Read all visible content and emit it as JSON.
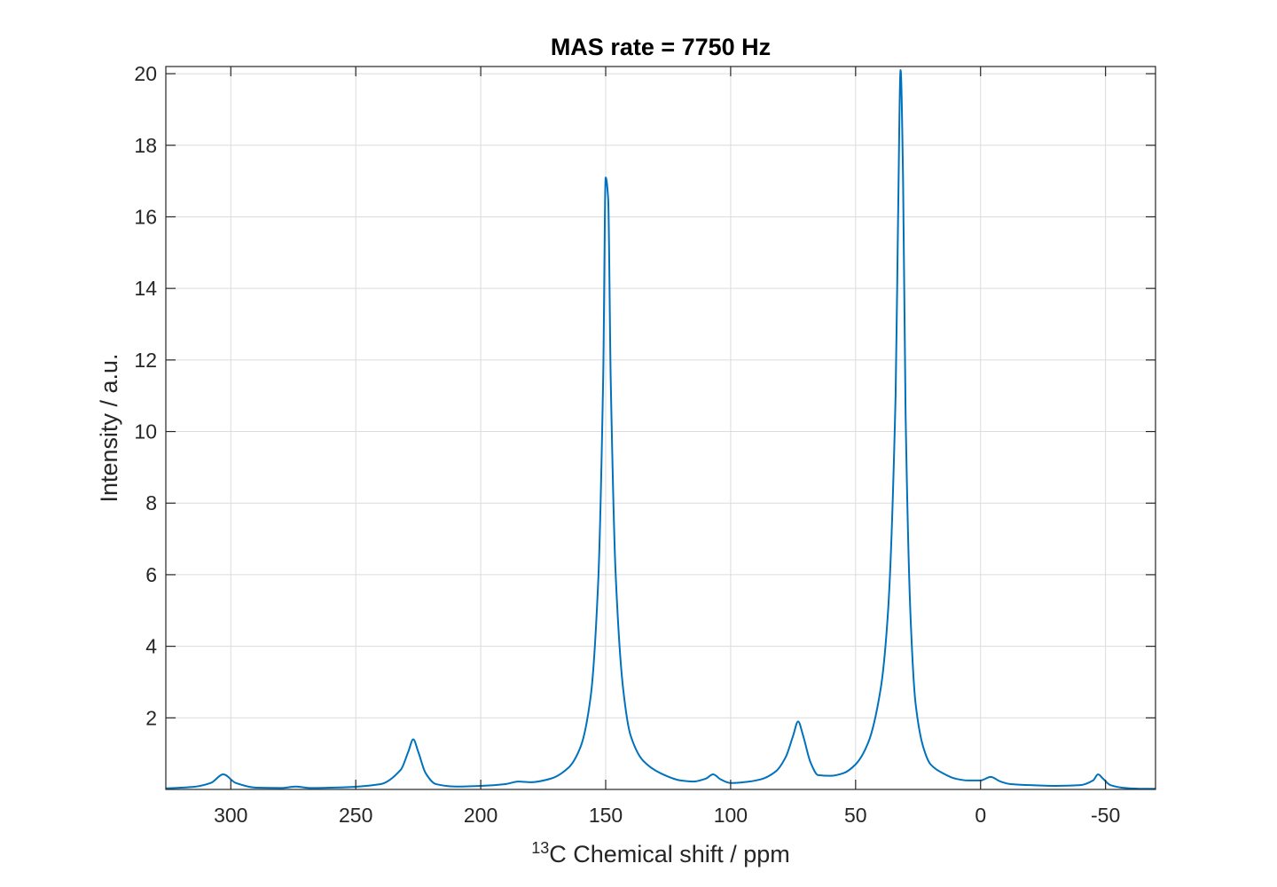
{
  "chart_data": {
    "type": "line",
    "title": "MAS rate = 7750 Hz",
    "xlabel_sup": "13",
    "xlabel_main": "C Chemical shift / ppm",
    "ylabel": "Intensity / a.u.",
    "xlim": [
      326,
      -70
    ],
    "ylim": [
      0,
      20.2
    ],
    "x_reversed": true,
    "grid": true,
    "line_color": "#0072BD",
    "xticks": [
      300,
      250,
      200,
      150,
      100,
      50,
      0,
      -50
    ],
    "xtick_labels": [
      "300",
      "250",
      "200",
      "150",
      "100",
      "50",
      "0",
      "-50"
    ],
    "yticks": [
      2,
      4,
      6,
      8,
      10,
      12,
      14,
      16,
      18,
      20
    ],
    "ytick_labels": [
      "2",
      "4",
      "6",
      "8",
      "10",
      "12",
      "14",
      "16",
      "18",
      "20"
    ],
    "series": [
      {
        "x": [
          326,
          315,
          308,
          303,
          298,
          290,
          280,
          274,
          268,
          255,
          240,
          232,
          229,
          227,
          225,
          222,
          218,
          210,
          200,
          190,
          185,
          180,
          172,
          165,
          160,
          156,
          153,
          151,
          150,
          149,
          148,
          146,
          143,
          140,
          135,
          128,
          120,
          115,
          110,
          107,
          104,
          100,
          95,
          88,
          82,
          78,
          75,
          73,
          71,
          68,
          65,
          60,
          55,
          50,
          45,
          40,
          37,
          34,
          33,
          32,
          31,
          30,
          28,
          26,
          23,
          20,
          15,
          10,
          5,
          0,
          -4,
          -8,
          -12,
          -20,
          -30,
          -40,
          -45,
          -47,
          -49,
          -52,
          -58,
          -65,
          -70
        ],
        "y": [
          0.03,
          0.07,
          0.18,
          0.42,
          0.18,
          0.05,
          0.04,
          0.08,
          0.04,
          0.06,
          0.15,
          0.55,
          1.05,
          1.4,
          1.05,
          0.45,
          0.15,
          0.08,
          0.1,
          0.15,
          0.22,
          0.2,
          0.3,
          0.6,
          1.2,
          2.6,
          5.8,
          11.5,
          17.1,
          16.5,
          11.5,
          6.0,
          2.8,
          1.5,
          0.8,
          0.45,
          0.25,
          0.22,
          0.3,
          0.42,
          0.28,
          0.18,
          0.2,
          0.28,
          0.5,
          0.9,
          1.5,
          1.9,
          1.5,
          0.75,
          0.4,
          0.38,
          0.45,
          0.7,
          1.3,
          2.8,
          5.0,
          11.0,
          16.0,
          20.1,
          17.0,
          10.5,
          4.8,
          2.4,
          1.2,
          0.7,
          0.45,
          0.3,
          0.25,
          0.25,
          0.35,
          0.22,
          0.15,
          0.12,
          0.1,
          0.12,
          0.25,
          0.42,
          0.3,
          0.12,
          0.04,
          0.02,
          0.02
        ]
      }
    ]
  }
}
